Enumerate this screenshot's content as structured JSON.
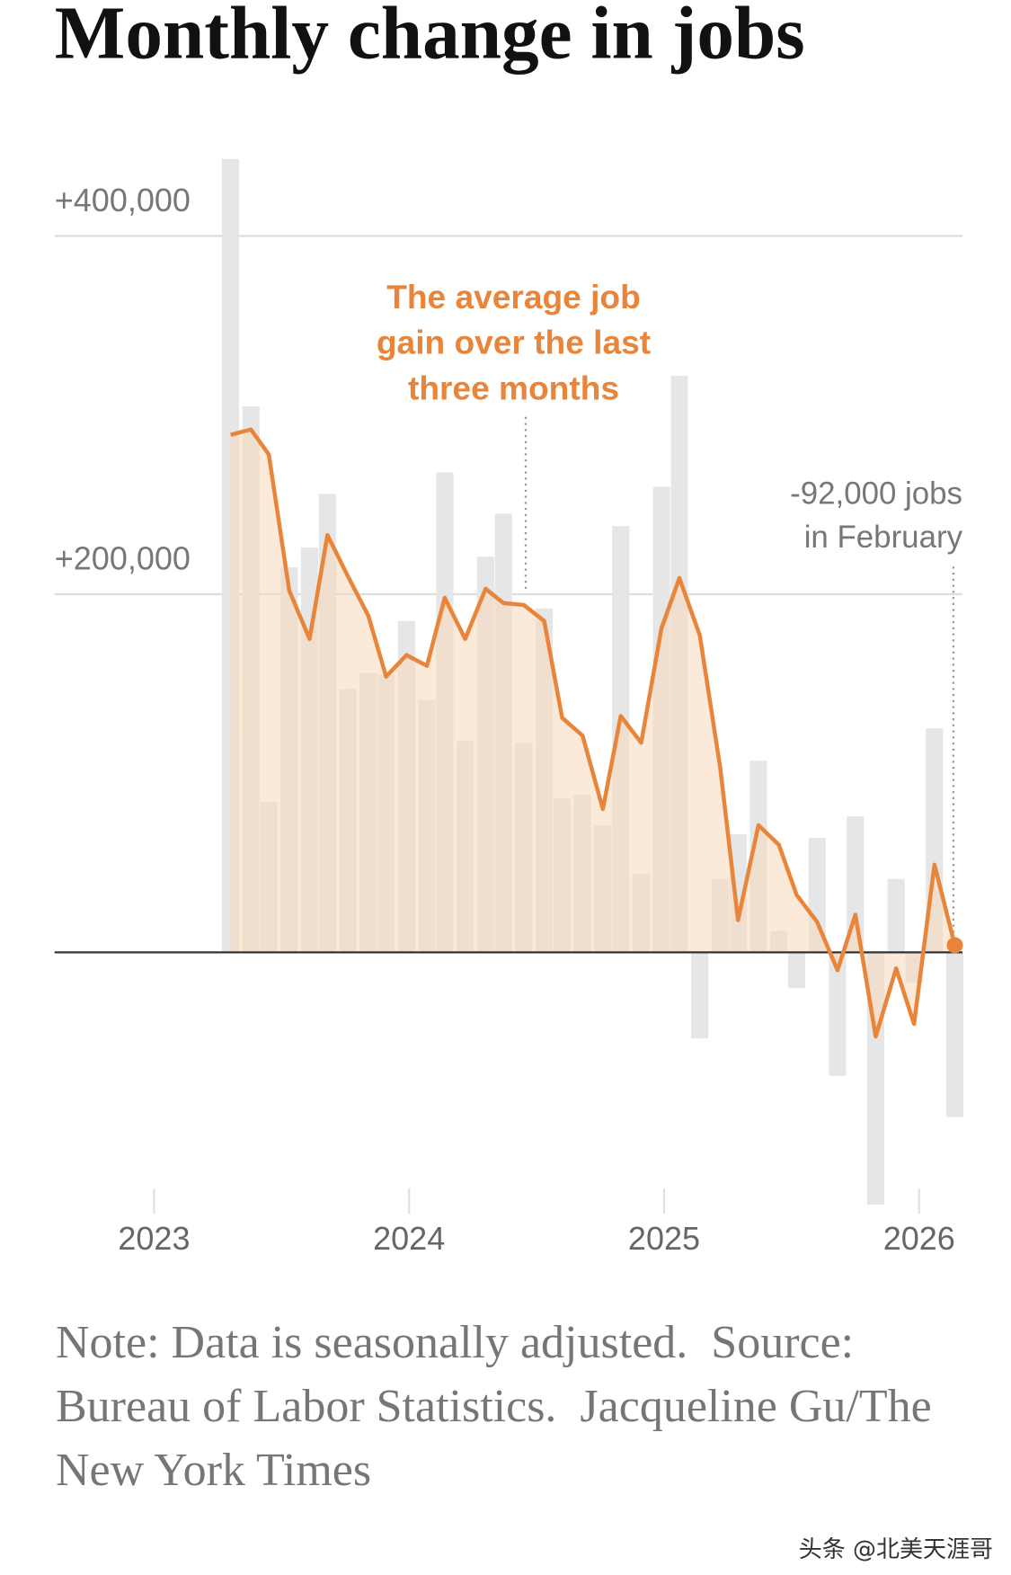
{
  "chart_data": {
    "type": "bar",
    "title": "Monthly change in jobs",
    "x": [
      2023.3,
      2023.38,
      2023.45,
      2023.53,
      2023.61,
      2023.68,
      2023.76,
      2023.84,
      2023.91,
      2023.99,
      2024.07,
      2024.14,
      2024.22,
      2024.3,
      2024.37,
      2024.45,
      2024.53,
      2024.6,
      2024.68,
      2024.76,
      2024.83,
      2024.91,
      2024.99,
      2025.06,
      2025.14,
      2025.22,
      2025.29,
      2025.37,
      2025.45,
      2025.52,
      2025.6,
      2025.68,
      2025.75,
      2025.83,
      2025.91,
      2025.98,
      2026.06,
      2026.14
    ],
    "bars": {
      "color": "#e6e6e6",
      "values": [
        443000,
        305000,
        84000,
        215000,
        226000,
        256000,
        147000,
        156000,
        155000,
        185000,
        141000,
        268000,
        118000,
        221000,
        245000,
        117000,
        192000,
        86000,
        88000,
        71000,
        238000,
        44000,
        260000,
        322000,
        -48000,
        41000,
        66000,
        107000,
        12000,
        -20000,
        64000,
        -69000,
        76000,
        -141000,
        41000,
        -17000,
        125000,
        -92000
      ]
    },
    "line": {
      "color": "#e8853a",
      "fill": "#f7d9bb",
      "values": [
        289000,
        292000,
        278000,
        202000,
        175000,
        233000,
        210000,
        188000,
        154000,
        166000,
        160000,
        198000,
        175000,
        203000,
        195000,
        194000,
        185000,
        131000,
        121000,
        80000,
        132000,
        117000,
        181000,
        209000,
        177000,
        103000,
        18000,
        71000,
        60000,
        32000,
        17000,
        -10000,
        21000,
        -47000,
        -9000,
        -40000,
        49000,
        4000
      ]
    },
    "xlim": [
      2022.61,
      2026.17
    ],
    "xticks": [
      2023,
      2024,
      2025,
      2026
    ],
    "ylim": [
      -146000,
      447000
    ],
    "yticks": [
      {
        "value": 200000,
        "label": "+200,000"
      },
      {
        "value": 400000,
        "label": "+400,000"
      }
    ],
    "grid": true,
    "annotation": [
      "The average job",
      "gain over the last",
      "three months"
    ],
    "end_annotation": [
      "-92,000 jobs",
      "in February"
    ],
    "note": "Note: Data is seasonally adjusted.  Source: Bureau of Labor Statistics.  Jacqueline Gu/The New York Times",
    "watermark": "头条 @北美天涯哥"
  }
}
